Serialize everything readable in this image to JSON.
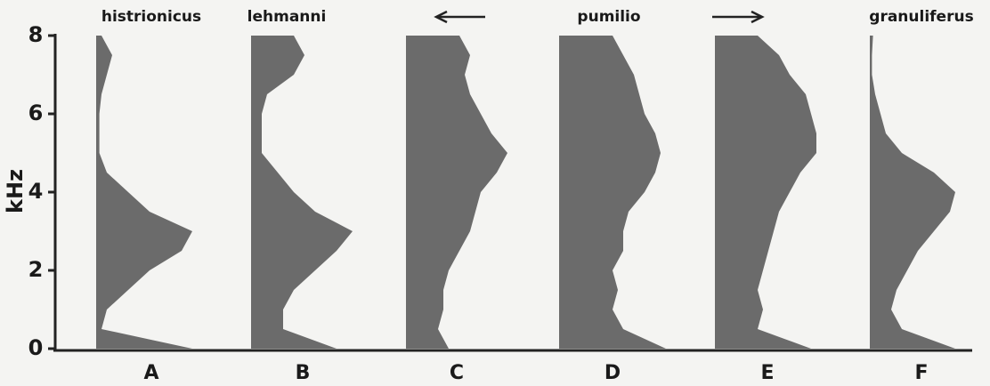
{
  "chart_data": {
    "type": "spectrum-panels",
    "y_label": "kHz",
    "species": [
      "histrionicus",
      "lehmanni",
      "pumilio",
      "granuliferus"
    ],
    "x": [
      0,
      0.5,
      1,
      1.5,
      2,
      2.5,
      3,
      3.5,
      4,
      4.5,
      5,
      5.5,
      6,
      6.5,
      7,
      7.5,
      8
    ],
    "ylim": [
      0,
      8
    ],
    "yticks": [
      0,
      2,
      4,
      6,
      8
    ],
    "color": "#6b6b6b",
    "series": [
      {
        "name": "A",
        "values": [
          0.9,
          0.05,
          0.1,
          0.3,
          0.5,
          0.8,
          0.9,
          0.5,
          0.3,
          0.1,
          0.03,
          0.03,
          0.03,
          0.05,
          0.1,
          0.15,
          0.05
        ]
      },
      {
        "name": "B",
        "values": [
          0.8,
          0.3,
          0.3,
          0.4,
          0.6,
          0.8,
          0.95,
          0.6,
          0.4,
          0.25,
          0.1,
          0.1,
          0.1,
          0.15,
          0.4,
          0.5,
          0.4
        ]
      },
      {
        "name": "C",
        "values": [
          0.4,
          0.3,
          0.35,
          0.35,
          0.4,
          0.5,
          0.6,
          0.65,
          0.7,
          0.85,
          0.95,
          0.8,
          0.7,
          0.6,
          0.55,
          0.6,
          0.5
        ]
      },
      {
        "name": "D",
        "values": [
          1,
          0.6,
          0.5,
          0.55,
          0.5,
          0.6,
          0.6,
          0.65,
          0.8,
          0.9,
          0.95,
          0.9,
          0.8,
          0.75,
          0.7,
          0.6,
          0.5
        ]
      },
      {
        "name": "E",
        "values": [
          0.9,
          0.4,
          0.45,
          0.4,
          0.45,
          0.5,
          0.55,
          0.6,
          0.7,
          0.8,
          0.95,
          0.95,
          0.9,
          0.85,
          0.7,
          0.6,
          0.4
        ]
      },
      {
        "name": "F",
        "values": [
          0.8,
          0.3,
          0.2,
          0.25,
          0.35,
          0.45,
          0.6,
          0.75,
          0.8,
          0.6,
          0.3,
          0.15,
          0.1,
          0.05,
          0.02,
          0.02,
          0.03
        ]
      }
    ]
  }
}
